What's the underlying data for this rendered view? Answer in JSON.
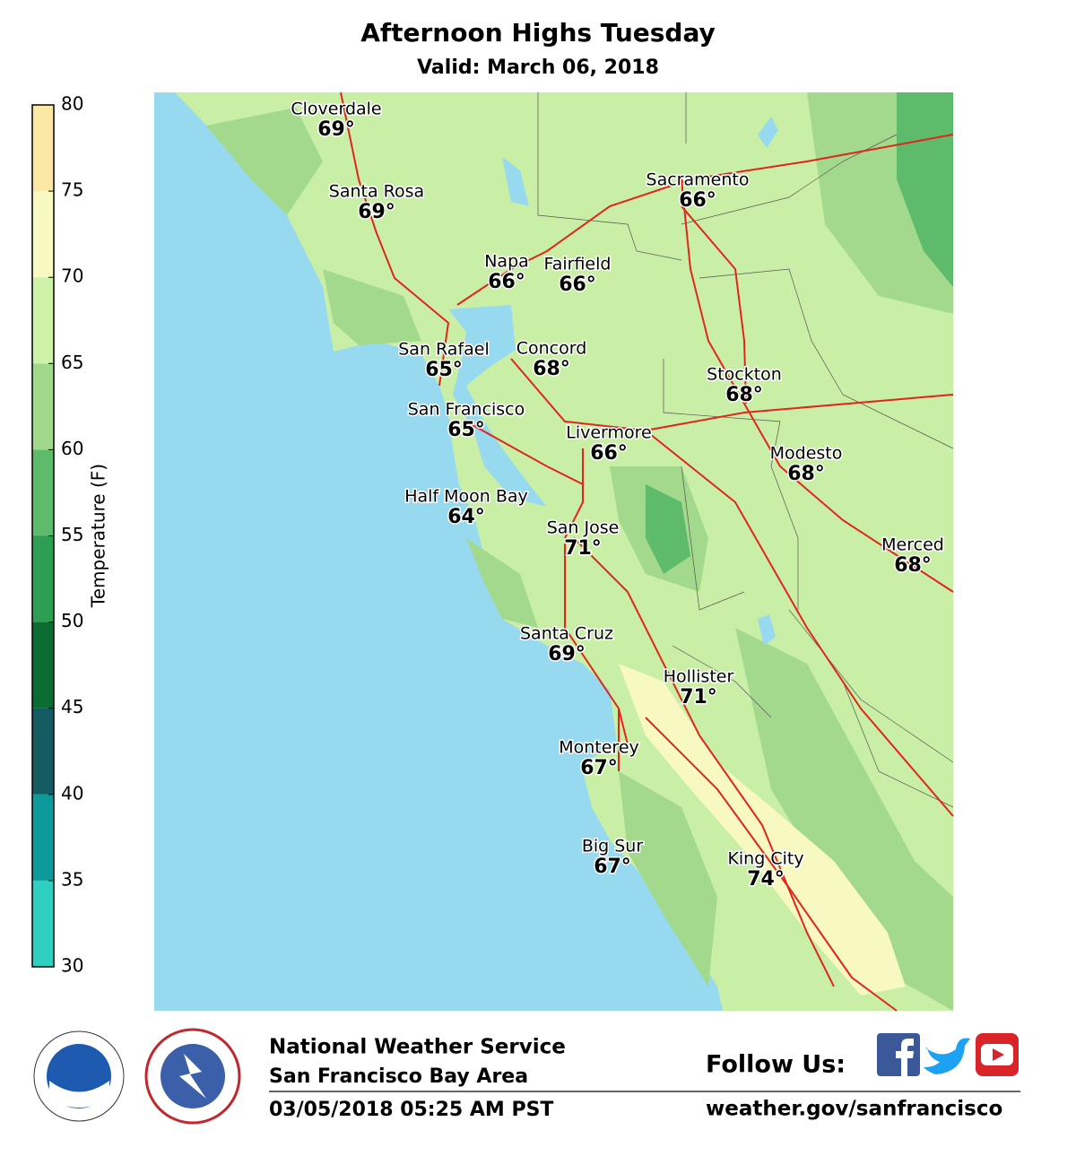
{
  "header": {
    "title": "Afternoon Highs Tuesday",
    "subtitle": "Valid: March 06, 2018"
  },
  "colorbar": {
    "label": "Temperature (F)",
    "range": [
      30,
      80
    ],
    "ticks": [
      30,
      35,
      40,
      45,
      50,
      55,
      60,
      65,
      70,
      75,
      80
    ],
    "colors": [
      "#2fd0c0",
      "#0c9a9a",
      "#155c62",
      "#0b6c31",
      "#2e9e52",
      "#5fbb6c",
      "#a0d88c",
      "#cdf2a8",
      "#f7f8c2",
      "#fbe8a4"
    ]
  },
  "cities": [
    {
      "name": "Cloverdale",
      "temp": "69°"
    },
    {
      "name": "Santa Rosa",
      "temp": "69°"
    },
    {
      "name": "Napa",
      "temp": "66°"
    },
    {
      "name": "Fairfield",
      "temp": "66°"
    },
    {
      "name": "Sacramento",
      "temp": "66°"
    },
    {
      "name": "San Rafael",
      "temp": "65°"
    },
    {
      "name": "Concord",
      "temp": "68°"
    },
    {
      "name": "Stockton",
      "temp": "68°"
    },
    {
      "name": "San Francisco",
      "temp": "65°"
    },
    {
      "name": "Livermore",
      "temp": "66°"
    },
    {
      "name": "Modesto",
      "temp": "68°"
    },
    {
      "name": "Half Moon Bay",
      "temp": "64°"
    },
    {
      "name": "San Jose",
      "temp": "71°"
    },
    {
      "name": "Merced",
      "temp": "68°"
    },
    {
      "name": "Santa Cruz",
      "temp": "69°"
    },
    {
      "name": "Hollister",
      "temp": "71°"
    },
    {
      "name": "Monterey",
      "temp": "67°"
    },
    {
      "name": "Big Sur",
      "temp": "67°"
    },
    {
      "name": "King City",
      "temp": "74°"
    }
  ],
  "footer": {
    "org": "National Weather Service",
    "office": "San Francisco Bay Area",
    "issued": "03/05/2018 05:25 AM PST",
    "follow": "Follow Us:",
    "url": "weather.gov/sanfrancisco"
  }
}
